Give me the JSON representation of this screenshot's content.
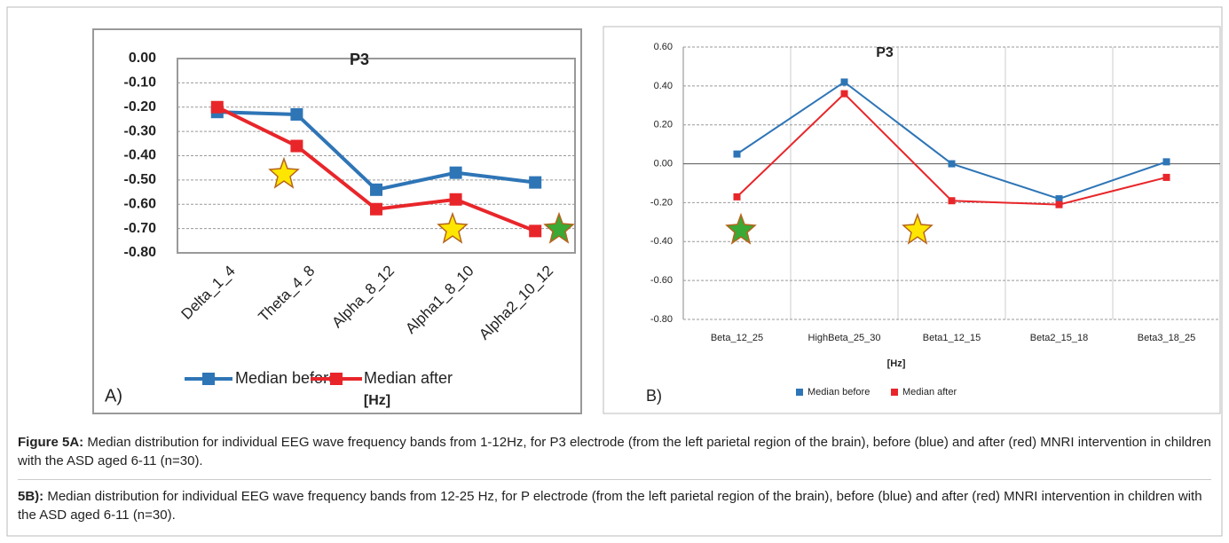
{
  "chart_data": [
    {
      "type": "line",
      "title": "P3",
      "x_label": "[Hz]",
      "panel_label": "A)",
      "categories": [
        "Delta_1_4",
        "Theta_4_8",
        "Alpha_8_12",
        "Alpha1_8_10",
        "Alpha2_10_12"
      ],
      "series": [
        {
          "name": "Median before",
          "color": "#2e75b6",
          "values": [
            -0.22,
            -0.23,
            -0.54,
            -0.47,
            -0.51
          ]
        },
        {
          "name": "Median after",
          "color": "#e8262a",
          "values": [
            -0.2,
            -0.36,
            -0.62,
            -0.58,
            -0.71
          ]
        }
      ],
      "ylim": [
        -0.8,
        0
      ],
      "yticks": [
        {
          "value": -0.8,
          "label": "-0.80"
        },
        {
          "value": -0.7,
          "label": "-0.70"
        },
        {
          "value": -0.6,
          "label": "-0.60"
        },
        {
          "value": -0.5,
          "label": "-0.50"
        },
        {
          "value": -0.4,
          "label": "-0.40"
        },
        {
          "value": -0.3,
          "label": "-0.30"
        },
        {
          "value": -0.2,
          "label": "-0.20"
        },
        {
          "value": -0.1,
          "label": "-0.10"
        },
        {
          "value": 0,
          "label": "0.00"
        }
      ],
      "grid": true,
      "legend": "bottom"
    },
    {
      "type": "line",
      "title": "P3",
      "x_label": "[Hz]",
      "panel_label": "B)",
      "categories": [
        "Beta_12_25",
        "HighBeta_25_30",
        "Beta1_12_15",
        "Beta2_15_18",
        "Beta3_18_25"
      ],
      "series": [
        {
          "name": "Median before",
          "color": "#2e75b6",
          "values": [
            0.05,
            0.42,
            0.0,
            -0.18,
            0.01
          ]
        },
        {
          "name": "Median after",
          "color": "#e8262a",
          "values": [
            -0.17,
            0.36,
            -0.19,
            -0.21,
            -0.07
          ]
        }
      ],
      "ylim": [
        -0.8,
        0.6
      ],
      "yticks": [
        {
          "value": -0.8,
          "label": "-0.80"
        },
        {
          "value": -0.6,
          "label": "-0.60"
        },
        {
          "value": -0.4,
          "label": "-0.40"
        },
        {
          "value": -0.2,
          "label": "-0.20"
        },
        {
          "value": 0,
          "label": "0.00"
        },
        {
          "value": 0.2,
          "label": "0.20"
        },
        {
          "value": 0.4,
          "label": "0.40"
        },
        {
          "value": 0.6,
          "label": "0.60"
        }
      ],
      "grid": true,
      "legend": "bottom"
    }
  ],
  "captions": [
    {
      "label": "Figure 5A:",
      "text": " Median distribution for individual EEG wave frequency bands from 1-12Hz, for P3 electrode (from the left parietal region of the brain), before (blue) and after (red) MNRI intervention in children with the ASD aged 6-11 (n=30)."
    },
    {
      "label": "5B):",
      "text": " Median distribution for individual EEG wave frequency bands from 12-25 Hz, for P electrode (from the left parietal region of the brain), before (blue) and after (red) MNRI intervention in children with the ASD aged 6-11 (n=30)."
    }
  ]
}
